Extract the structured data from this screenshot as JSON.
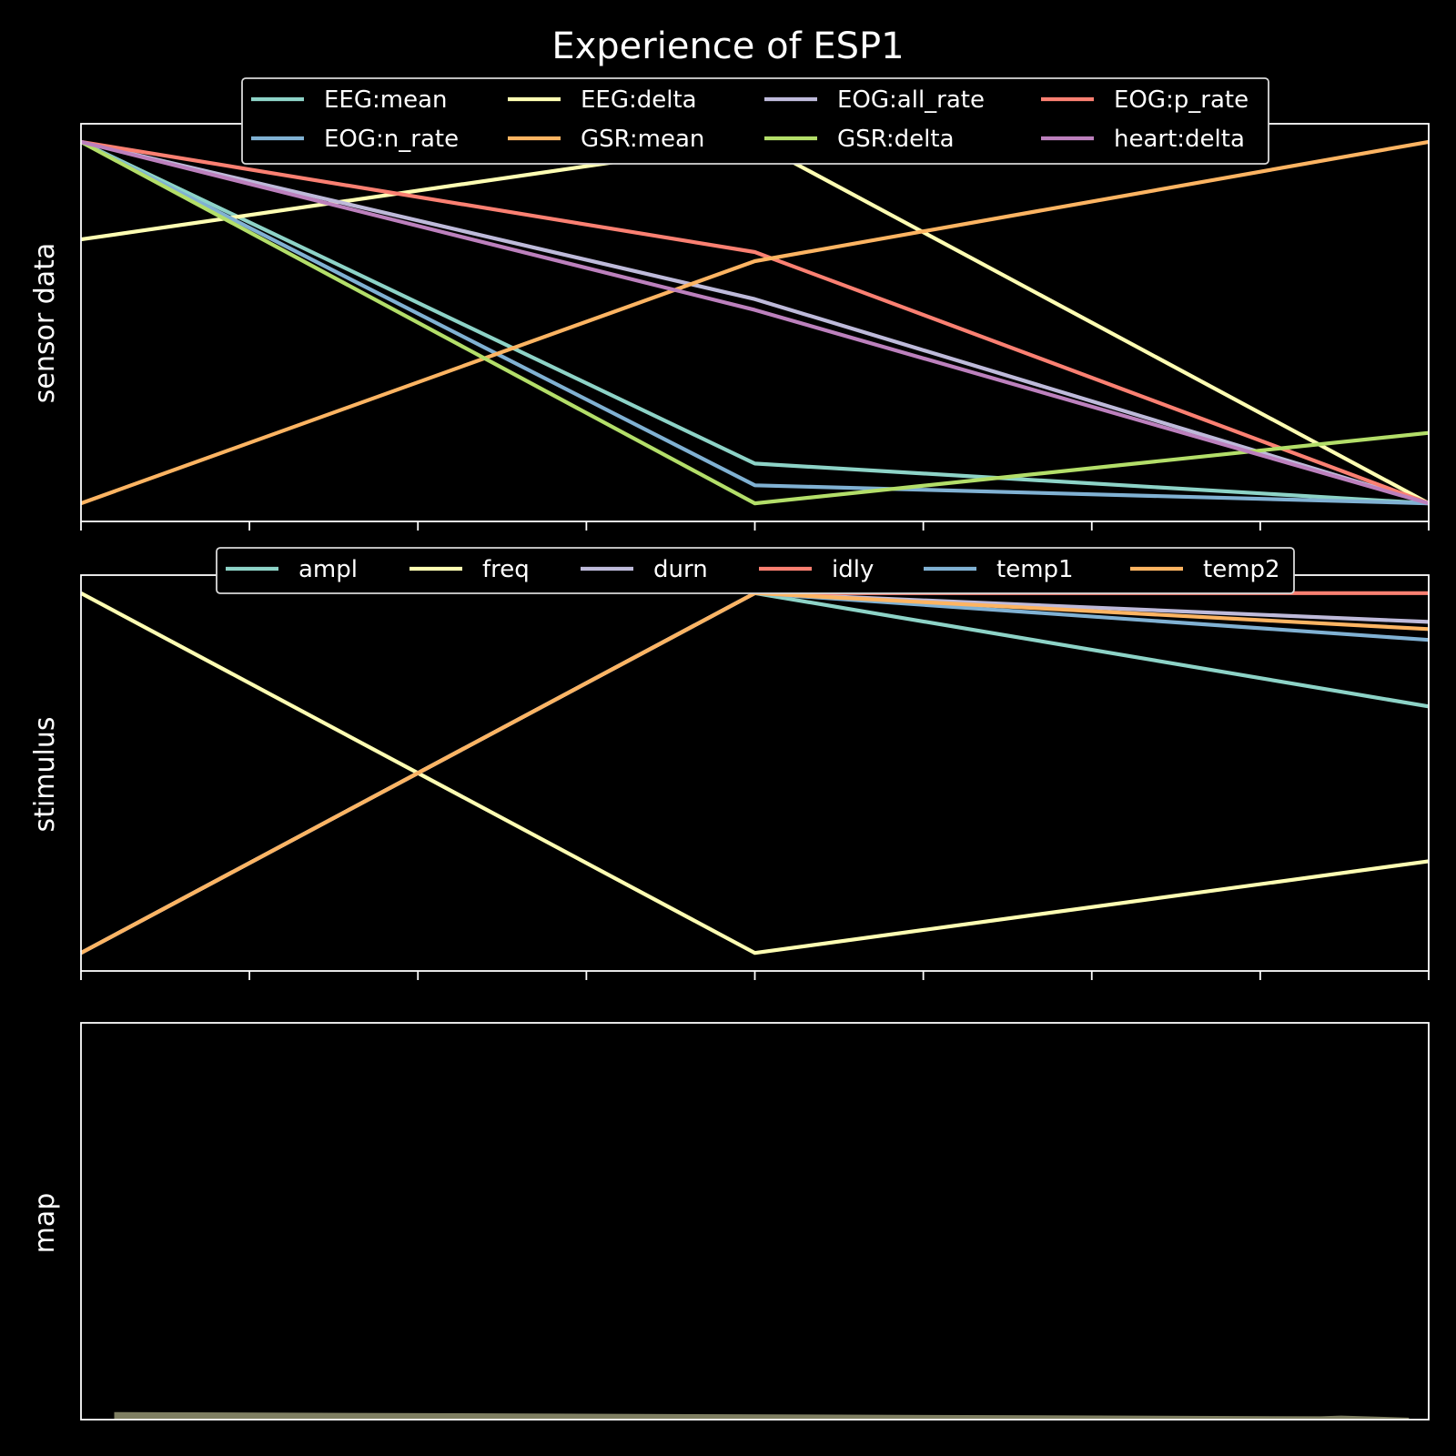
{
  "chart_data": [
    {
      "type": "line",
      "title": "Experience of ESP1",
      "ylabel": "sensor data",
      "xlabel": "",
      "x": [
        0,
        1,
        2
      ],
      "xlim": [
        0,
        2
      ],
      "ylim": [
        -0.05,
        1.05
      ],
      "xtick_count": 9,
      "grid": false,
      "legend": {
        "placement": "upper center",
        "columns": 4
      },
      "series": [
        {
          "name": "EEG:mean",
          "color": "#8dd3c7",
          "values": [
            1.0,
            0.11,
            0.0
          ]
        },
        {
          "name": "EEG:delta",
          "color": "#ffffb3",
          "values": [
            0.73,
            1.0,
            0.0
          ]
        },
        {
          "name": "EOG:all_rate",
          "color": "#bebada",
          "values": [
            1.0,
            0.565,
            0.0
          ]
        },
        {
          "name": "EOG:p_rate",
          "color": "#fb8072",
          "values": [
            1.0,
            0.695,
            0.0
          ]
        },
        {
          "name": "EOG:n_rate",
          "color": "#80b1d3",
          "values": [
            1.0,
            0.05,
            0.0
          ]
        },
        {
          "name": "GSR:mean",
          "color": "#fdb462",
          "values": [
            0.0,
            0.67,
            1.0
          ]
        },
        {
          "name": "GSR:delta",
          "color": "#b3de69",
          "values": [
            1.0,
            0.0,
            0.195
          ]
        },
        {
          "name": "heart:delta",
          "color": "#bc80bd",
          "values": [
            1.0,
            0.535,
            0.0
          ]
        }
      ]
    },
    {
      "type": "line",
      "title": "",
      "ylabel": "stimulus",
      "xlabel": "",
      "x": [
        0,
        1,
        2
      ],
      "xlim": [
        0,
        2
      ],
      "ylim": [
        -0.05,
        1.05
      ],
      "xtick_count": 9,
      "grid": false,
      "legend": {
        "placement": "upper center",
        "columns": 6
      },
      "series": [
        {
          "name": "ampl",
          "color": "#8dd3c7",
          "values": [
            0.0,
            1.0,
            0.685
          ]
        },
        {
          "name": "freq",
          "color": "#ffffb3",
          "values": [
            1.0,
            0.0,
            0.255
          ]
        },
        {
          "name": "durn",
          "color": "#bebada",
          "values": [
            0.0,
            1.0,
            0.92
          ]
        },
        {
          "name": "idly",
          "color": "#fb8072",
          "values": [
            0.0,
            1.0,
            1.0
          ]
        },
        {
          "name": "temp1",
          "color": "#80b1d3",
          "values": [
            0.0,
            1.0,
            0.87
          ]
        },
        {
          "name": "temp2",
          "color": "#fdb462",
          "values": [
            0.0,
            1.0,
            0.9
          ]
        }
      ]
    },
    {
      "type": "area",
      "title": "",
      "ylabel": "map",
      "xlabel": "",
      "ylim": [
        0,
        1
      ],
      "grid": false,
      "color": "#7f7f62",
      "x": [
        0.025,
        0.92,
        0.935,
        0.985
      ],
      "values": [
        0.018,
        0.007,
        0.009,
        0.004
      ]
    }
  ]
}
